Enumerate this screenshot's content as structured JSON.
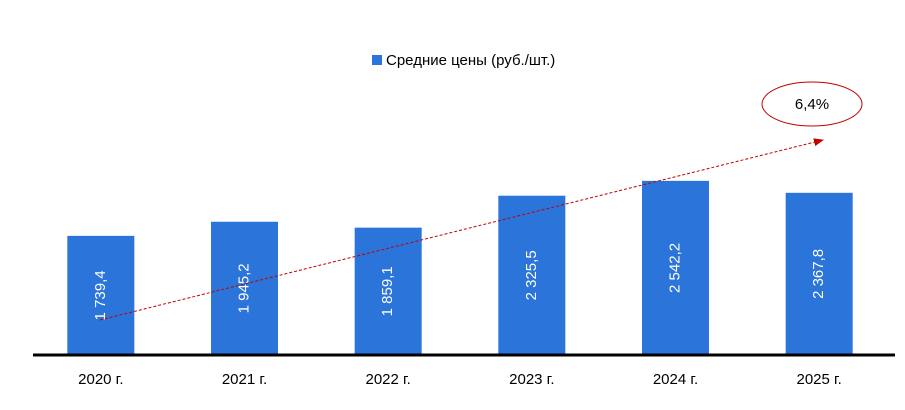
{
  "chart_data": {
    "type": "bar",
    "legend_title": "Средние цены (руб./шт.)",
    "categories": [
      "2020 г.",
      "2021 г.",
      "2022 г.",
      "2023 г.",
      "2024 г.",
      "2025 г."
    ],
    "series": [
      {
        "name": "Средние цены (руб./шт.)",
        "color": "#2b74da",
        "values": [
          1739.4,
          1945.2,
          1859.1,
          2325.5,
          2542.2,
          2367.8
        ],
        "value_labels": [
          "1 739,4",
          "1 945,2",
          "1 859,1",
          "2 325,5",
          "2 542,2",
          "2 367,8"
        ]
      }
    ],
    "ylim": [
      0,
      4000
    ],
    "annotation": "6,4%",
    "legend_position": "top"
  }
}
